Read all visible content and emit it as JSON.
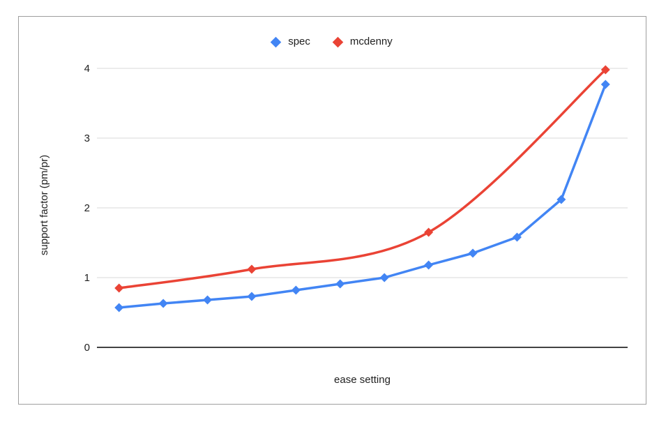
{
  "chart_data": {
    "type": "line",
    "title": "",
    "xlabel": "ease setting",
    "ylabel": "support factor (pm/pr)",
    "xlim": [
      0.5,
      12.5
    ],
    "ylim": [
      0,
      4
    ],
    "yticks": [
      0,
      1,
      2,
      3,
      4
    ],
    "x_tick_labels": [],
    "grid": true,
    "legend_position": "top-center",
    "colors": {
      "grid": "#d9d9d9",
      "axis": "#424242",
      "text": "#212121",
      "border": "#9e9e9e",
      "background": "#ffffff"
    },
    "series": [
      {
        "name": "spec",
        "color": "#4285F4",
        "marker": "diamond",
        "line_style": "straight",
        "x": [
          1,
          2,
          3,
          4,
          5,
          6,
          7,
          8,
          9,
          10,
          11,
          12
        ],
        "y": [
          0.57,
          0.63,
          0.68,
          0.73,
          0.82,
          0.91,
          1.0,
          1.18,
          1.35,
          1.58,
          2.12,
          3.77
        ]
      },
      {
        "name": "mcdenny",
        "color": "#EA4335",
        "marker": "diamond",
        "line_style": "smooth",
        "x": [
          1,
          4,
          8,
          12
        ],
        "y": [
          0.85,
          1.12,
          1.65,
          3.98
        ]
      }
    ]
  }
}
